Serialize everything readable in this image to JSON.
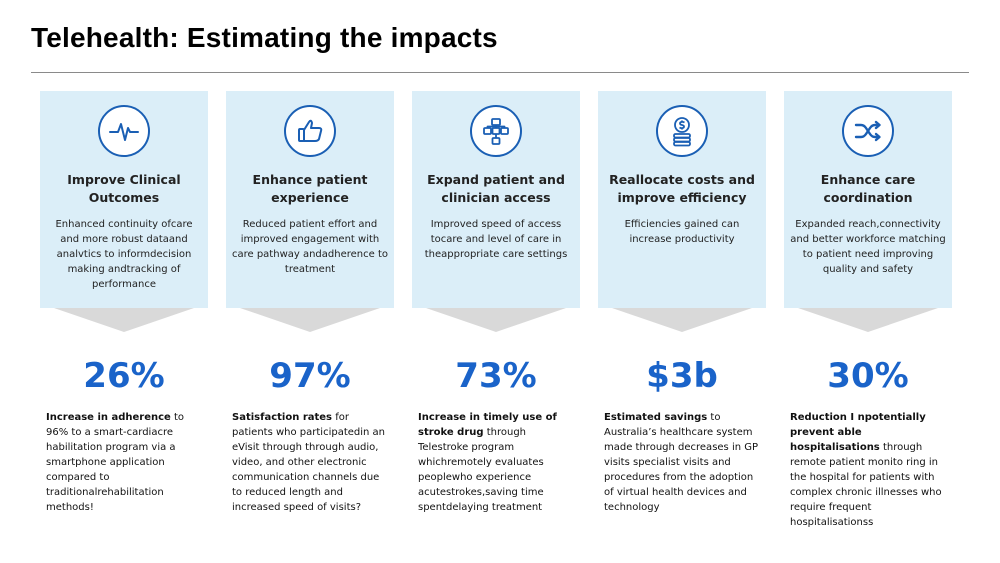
{
  "title": "Telehealth: Estimating the impacts",
  "columns": [
    {
      "icon": "heartbeat-icon",
      "title": "Improve Clinical Outcomes",
      "description": "Enhanced continuity ofcare and more robust dataand analvtics to informdecision making andtracking of performance",
      "stat": "26%",
      "detail_bold": "Increase in adherence",
      "detail_text": " to 96%  to a smart-cardiacre habilitation program via a smartphone application compared to traditionalrehabilitation methods!"
    },
    {
      "icon": "thumbs-up-icon",
      "title": "Enhance patient experience",
      "description": "Reduced patient effort and improved engagement with care pathway andadherence to treatment",
      "stat": "97%",
      "detail_bold": "Satisfaction rates",
      "detail_text": " for patients who participatedin an eVisit through through audio, video, and other electronic communication channels due to reduced length and increased speed of visits?"
    },
    {
      "icon": "network-icon",
      "title": "Expand patient and clinician access",
      "description": "Improved speed of access tocare and level of care in theappropriate care settings",
      "stat": "73%",
      "detail_bold": "Increase in timely use of stroke drug",
      "detail_text": " through Telestroke program whichremotely evaluates peoplewho experience acutestrokes,saving time spentdelaying treatment"
    },
    {
      "icon": "coins-icon",
      "title": "Reallocate costs and improve efficiency",
      "description": "Efficiencies gained can increase productivity",
      "stat": "$3b",
      "detail_bold": "Estimated savings",
      "detail_text": " to Australia’s healthcare system made through decreases in GP visits specialist visits and procedures from the adoption of virtual health devices and technology"
    },
    {
      "icon": "shuffle-icon",
      "title": "Enhance care coordination",
      "description": "Expanded reach,connectivity and better workforce matching to patient need improving quality and safety",
      "stat": "30%",
      "detail_bold": "Reduction I npotentially prevent able hospitalisations",
      "detail_text": " through remote patient monito ring in the hospital for patients with complex chronic illnesses who require frequent hospitalisationss"
    }
  ],
  "colors": {
    "card_bg": "#dbeef8",
    "accent": "#1a63c9",
    "icon_stroke": "#1a5fb4",
    "arrow": "#d9d9d9"
  }
}
